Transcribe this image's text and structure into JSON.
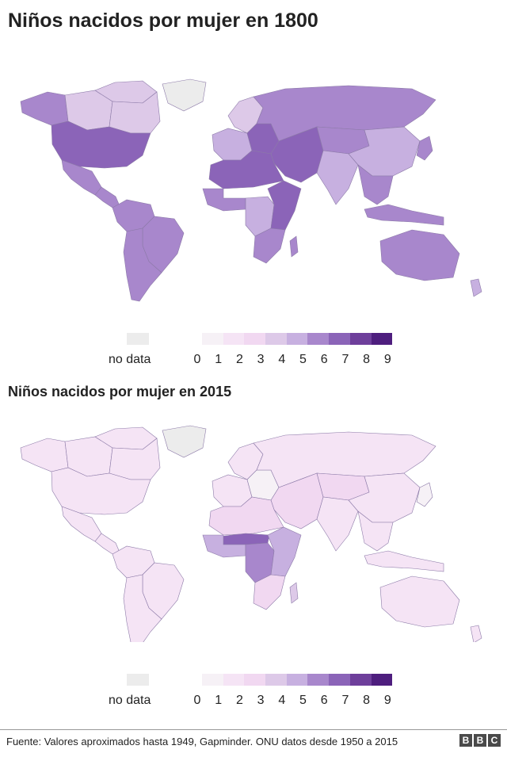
{
  "map1": {
    "title": "Niños nacidos por mujer en 1800",
    "regions": {
      "alaska": 6,
      "canada_west": 4,
      "canada_north": 4,
      "canada_east": 4,
      "greenland": null,
      "usa": 7,
      "mexico": 6,
      "central_america": 6,
      "south_america_north": 6,
      "brazil": 6,
      "south_america_south": 6,
      "europe_west": 5,
      "scandinavia": 4,
      "eastern_europe": 7,
      "russia": 6,
      "middle_east": 7,
      "north_africa": 7,
      "west_africa": 6,
      "central_africa": 5,
      "east_africa": 7,
      "southern_africa": 6,
      "madagascar": 6,
      "central_asia": 6,
      "india": 5,
      "china": 5,
      "southeast_asia": 6,
      "indonesia": 6,
      "japan": 6,
      "australia": 6,
      "new_zealand": 5
    }
  },
  "map2": {
    "title": "Niños nacidos por mujer en 2015",
    "regions": {
      "alaska": 2,
      "canada_west": 2,
      "canada_north": 2,
      "canada_east": 2,
      "greenland": null,
      "usa": 2,
      "mexico": 2,
      "central_america": 2,
      "south_america_north": 2,
      "brazil": 2,
      "south_america_south": 2,
      "europe_west": 2,
      "scandinavia": 2,
      "eastern_europe": 1,
      "russia": 2,
      "middle_east": 3,
      "north_africa": 3,
      "west_africa": 5,
      "sahel": 7,
      "central_africa": 6,
      "east_africa": 5,
      "southern_africa": 3,
      "madagascar": 4,
      "central_asia": 3,
      "india": 2,
      "china": 2,
      "southeast_asia": 2,
      "indonesia": 2,
      "japan": 1,
      "australia": 2,
      "new_zealand": 2
    }
  },
  "legend": {
    "nodata_label": "no data",
    "ticks": [
      "0",
      "1",
      "2",
      "3",
      "4",
      "5",
      "6",
      "7",
      "8",
      "9"
    ],
    "colors": [
      "#f6f1f6",
      "#f5e4f5",
      "#f1d8f1",
      "#ddc9e8",
      "#c7b0e0",
      "#a887cc",
      "#8b64b8",
      "#6e3f9b",
      "#4e1e7e"
    ],
    "nodata_color": "#ececec",
    "border_color": "#8c7aa8"
  },
  "footer": {
    "source": "Fuente: Valores aproximados hasta 1949, Gapminder. ONU datos desde 1950 a 2015",
    "logo_letters": [
      "B",
      "B",
      "C"
    ]
  }
}
